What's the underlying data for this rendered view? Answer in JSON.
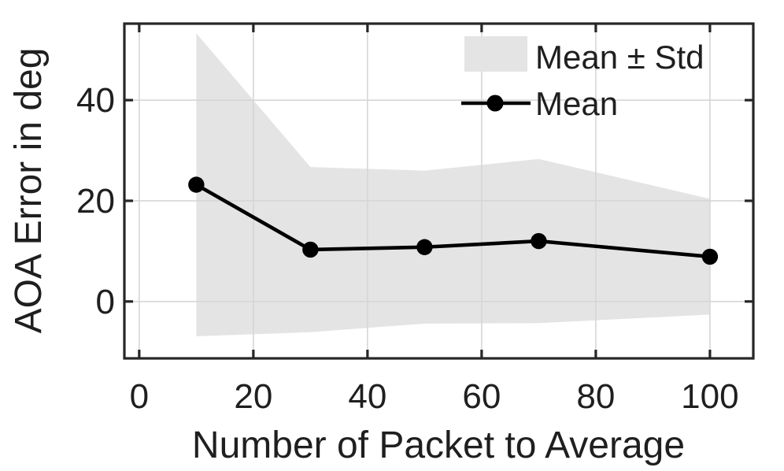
{
  "chart_data": {
    "type": "line",
    "title": "",
    "xlabel": "Number of Packet to Average",
    "ylabel": "AOA Error in deg",
    "x": [
      10,
      30,
      50,
      70,
      100
    ],
    "series": [
      {
        "name": "Mean",
        "values": [
          23.2,
          10.3,
          10.8,
          12.0,
          8.9
        ]
      },
      {
        "name": "Std",
        "values": [
          30.1,
          16.4,
          15.2,
          16.3,
          11.5
        ]
      }
    ],
    "band": {
      "description": "shaded region spanning mean minus std to mean plus std",
      "upper": [
        53.3,
        26.7,
        26.0,
        28.3,
        20.4
      ],
      "lower": [
        -6.9,
        -6.1,
        -4.4,
        -4.3,
        -2.6
      ]
    },
    "xticks": [
      0,
      20,
      40,
      60,
      80,
      100
    ],
    "yticks": [
      0,
      20,
      40
    ],
    "xlim": [
      -2.6,
      107.6
    ],
    "ylim": [
      -11.3,
      55.2
    ],
    "grid": true,
    "legend": [
      {
        "label": "Mean ± Std",
        "swatch": "band"
      },
      {
        "label": "Mean",
        "swatch": "line-marker"
      }
    ],
    "legend_position": "top-right-inside",
    "colors": {
      "band": "#e4e4e4",
      "line": "#000000",
      "marker": "#000000",
      "grid": "#d6d6d6",
      "axis": "#262626",
      "text": "#1f1f1f",
      "background": "#ffffff"
    }
  }
}
